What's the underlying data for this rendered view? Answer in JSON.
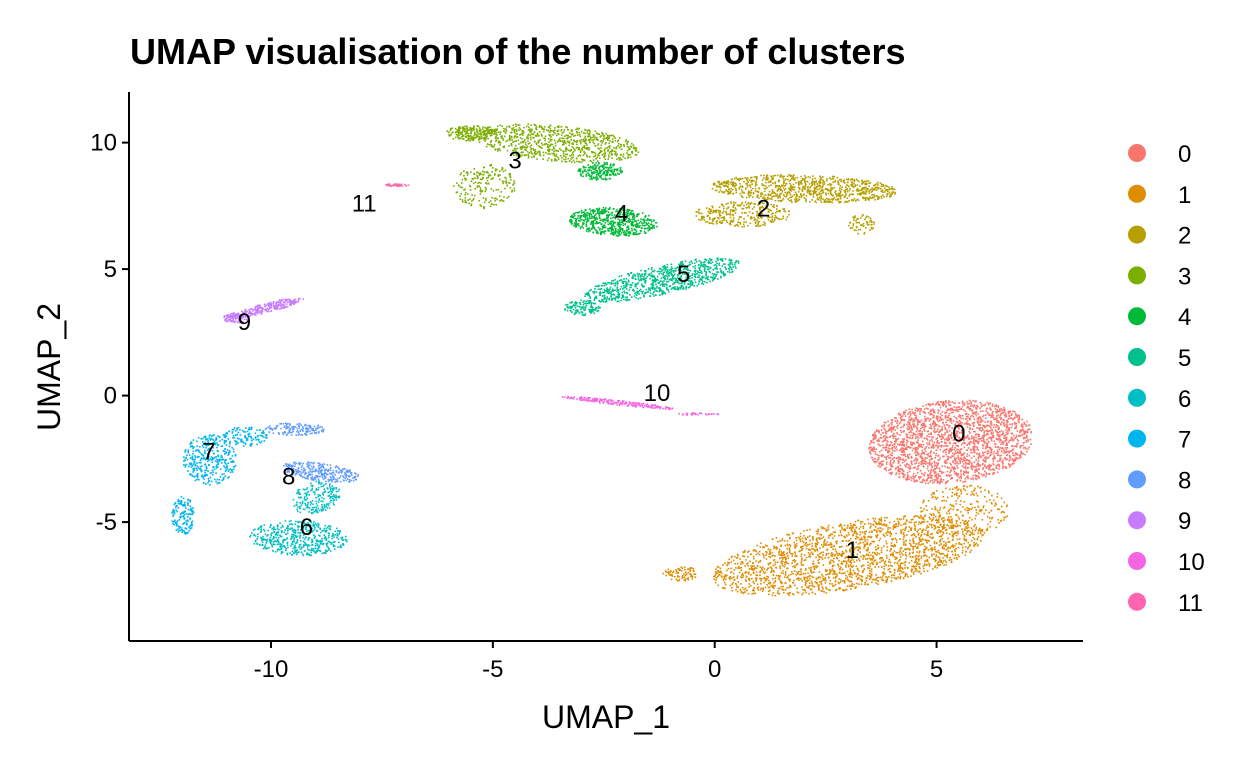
{
  "chart_data": {
    "type": "scatter",
    "title": "UMAP visualisation of the number of clusters",
    "xlabel": "UMAP_1",
    "ylabel": "UMAP_2",
    "xlim": [
      -13.2,
      8.3
    ],
    "ylim": [
      -9.7,
      12.0
    ],
    "x_ticks": [
      -10,
      -5,
      0,
      5
    ],
    "x_tick_labels": [
      "-10",
      "-5",
      "0",
      "5"
    ],
    "y_ticks": [
      -5,
      0,
      5,
      10
    ],
    "y_tick_labels": [
      "-5",
      "0",
      "5",
      "10"
    ],
    "grid": false,
    "legend_position": "right",
    "series": [
      {
        "name": "0",
        "color": "#F8766D",
        "center": [
          5.3,
          -1.8
        ]
      },
      {
        "name": "1",
        "color": "#DE8C00",
        "center": [
          3.1,
          -6.2
        ]
      },
      {
        "name": "2",
        "color": "#B79F00",
        "center": [
          1.9,
          8.0
        ]
      },
      {
        "name": "3",
        "color": "#7CAE00",
        "center": [
          -3.7,
          9.9
        ]
      },
      {
        "name": "4",
        "color": "#00BA38",
        "center": [
          -2.3,
          7.0
        ]
      },
      {
        "name": "5",
        "color": "#00C08B",
        "center": [
          -1.2,
          4.5
        ]
      },
      {
        "name": "6",
        "color": "#00BFC4",
        "center": [
          -9.5,
          -5.2
        ]
      },
      {
        "name": "7",
        "color": "#00B4F0",
        "center": [
          -11.5,
          -2.5
        ]
      },
      {
        "name": "8",
        "color": "#619CFF",
        "center": [
          -9.0,
          -2.9
        ]
      },
      {
        "name": "9",
        "color": "#C77CFF",
        "center": [
          -10.3,
          3.4
        ]
      },
      {
        "name": "10",
        "color": "#F564E3",
        "center": [
          -2.0,
          -0.3
        ]
      },
      {
        "name": "11",
        "color": "#FF64B0",
        "center": [
          -7.2,
          8.4
        ]
      }
    ],
    "cluster_labels": [
      {
        "text": "0",
        "x": 5.5,
        "y": -1.5
      },
      {
        "text": "1",
        "x": 3.1,
        "y": -6.1
      },
      {
        "text": "2",
        "x": 1.1,
        "y": 7.4
      },
      {
        "text": "3",
        "x": -4.5,
        "y": 9.3
      },
      {
        "text": "4",
        "x": -2.1,
        "y": 7.2
      },
      {
        "text": "5",
        "x": -0.7,
        "y": 4.8
      },
      {
        "text": "6",
        "x": -9.2,
        "y": -5.2
      },
      {
        "text": "7",
        "x": -11.4,
        "y": -2.2
      },
      {
        "text": "8",
        "x": -9.6,
        "y": -3.2
      },
      {
        "text": "9",
        "x": -10.6,
        "y": 2.9
      },
      {
        "text": "10",
        "x": -1.3,
        "y": 0.1
      },
      {
        "text": "11",
        "x": -7.9,
        "y": 7.6
      }
    ]
  }
}
